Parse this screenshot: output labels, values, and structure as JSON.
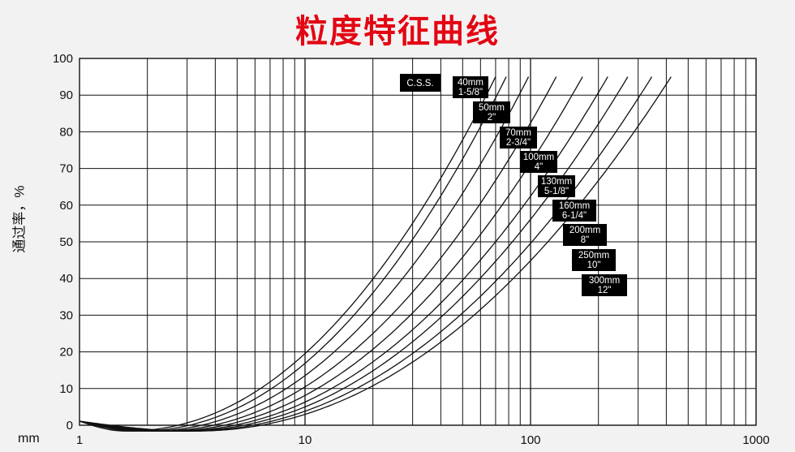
{
  "chart_data": {
    "type": "line",
    "title": "粒度特征曲线",
    "ylabel": "通过率，%",
    "xunit": "mm",
    "xscale": "log",
    "xlim": [
      1,
      1000
    ],
    "ylim": [
      0,
      100
    ],
    "grid": true,
    "x_tick_labels": [
      "1",
      "10",
      "100",
      "1000"
    ],
    "y_tick_labels": [
      "0",
      "10",
      "20",
      "30",
      "40",
      "50",
      "60",
      "70",
      "80",
      "90",
      "100"
    ],
    "legend_header": "C.S.S.",
    "series": [
      {
        "name_lines": [
          "40mm",
          "1-5/8\""
        ],
        "x_top": 70,
        "y_top": 95
      },
      {
        "name_lines": [
          "50mm",
          "2\""
        ],
        "x_top": 78,
        "y_top": 95
      },
      {
        "name_lines": [
          "70mm",
          "2-3/4\""
        ],
        "x_top": 98,
        "y_top": 95
      },
      {
        "name_lines": [
          "100mm",
          "4\""
        ],
        "x_top": 130,
        "y_top": 95
      },
      {
        "name_lines": [
          "130mm",
          "5-1/8\""
        ],
        "x_top": 170,
        "y_top": 95
      },
      {
        "name_lines": [
          "160mm",
          "6-1/4\""
        ],
        "x_top": 220,
        "y_top": 95
      },
      {
        "name_lines": [
          "200mm",
          "8\""
        ],
        "x_top": 270,
        "y_top": 95
      },
      {
        "name_lines": [
          "250mm",
          "10\""
        ],
        "x_top": 345,
        "y_top": 95
      },
      {
        "name_lines": [
          "300mm",
          "12\""
        ],
        "x_top": 420,
        "y_top": 95
      }
    ]
  }
}
